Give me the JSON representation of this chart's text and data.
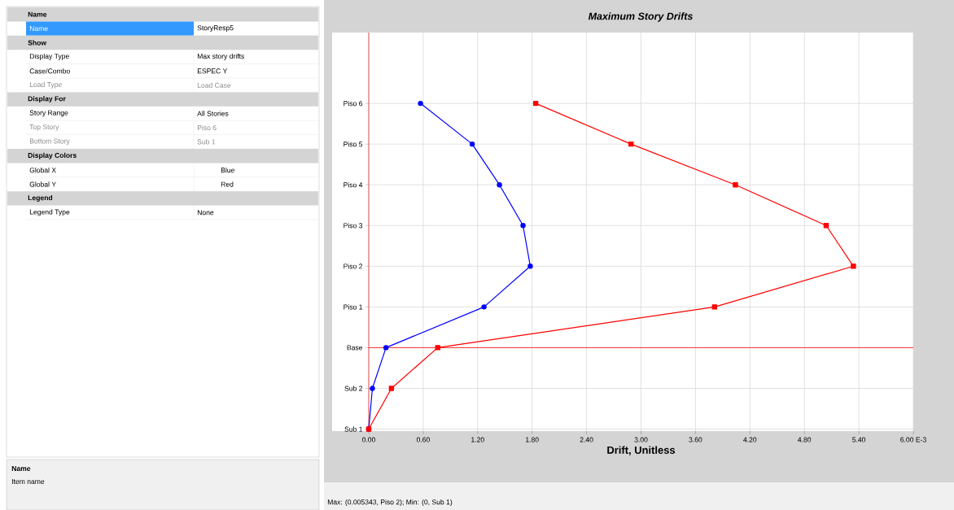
{
  "chart_data": [
    {
      "type": "other",
      "annotations": [
        "Name",
        "Name",
        "StoryResp5",
        "Show",
        "Display Type",
        "Max story drifts",
        "Case/Combo",
        "ESPEC Y",
        "Load Type",
        "Load Case",
        "Display For",
        "Story Range",
        "All Stories",
        "Top Story",
        "Piso 6",
        "Bottom Story",
        "Sub 1",
        "Display Colors",
        "Global X",
        "Blue",
        "Global Y",
        "Red",
        "Legend",
        "Legend Type",
        "None",
        "Name",
        "Item name"
      ]
    },
    {
      "type": "line",
      "title": "Maximum Story Drifts",
      "xlabel": "Drift, Unitless",
      "orientation": "horizontal",
      "categories": [
        "Piso 6",
        "Piso 5",
        "Piso 4",
        "Piso 3",
        "Piso 2",
        "Piso 1",
        "Base",
        "Sub 2",
        "Sub 1"
      ],
      "series": [
        {
          "color": "#0000ff",
          "marker": "circle",
          "values": [
            0.57,
            1.14,
            1.44,
            1.7,
            1.78,
            1.27,
            0.19,
            0.04,
            0
          ]
        },
        {
          "color": "#ff0000",
          "marker": "square",
          "values": [
            1.84,
            2.89,
            4.04,
            5.04,
            5.34,
            3.81,
            0.76,
            0.25,
            0
          ]
        }
      ],
      "xlim": [
        0,
        6
      ],
      "xticks": [
        {
          "value": 0,
          "label": "0.00"
        },
        {
          "value": 0.6,
          "label": "0.60"
        },
        {
          "value": 1.2,
          "label": "1.20"
        },
        {
          "value": 1.8,
          "label": "1.80"
        },
        {
          "value": 2.4,
          "label": "2.40"
        },
        {
          "value": 3,
          "label": "3.00"
        },
        {
          "value": 3.6,
          "label": "3.60"
        },
        {
          "value": 4.2,
          "label": "4.20"
        },
        {
          "value": 4.8,
          "label": "4.80"
        },
        {
          "value": 5.4,
          "label": "5.40"
        },
        {
          "value": 6,
          "label": "6.00 E-3"
        }
      ],
      "grid": true,
      "ref_lines": [
        {
          "axis": "y",
          "value": "Base",
          "color": "#ff0000"
        }
      ],
      "annotations": [
        "Max: (0.005343, Piso 2);   Min: (0, Sub 1)"
      ]
    }
  ]
}
